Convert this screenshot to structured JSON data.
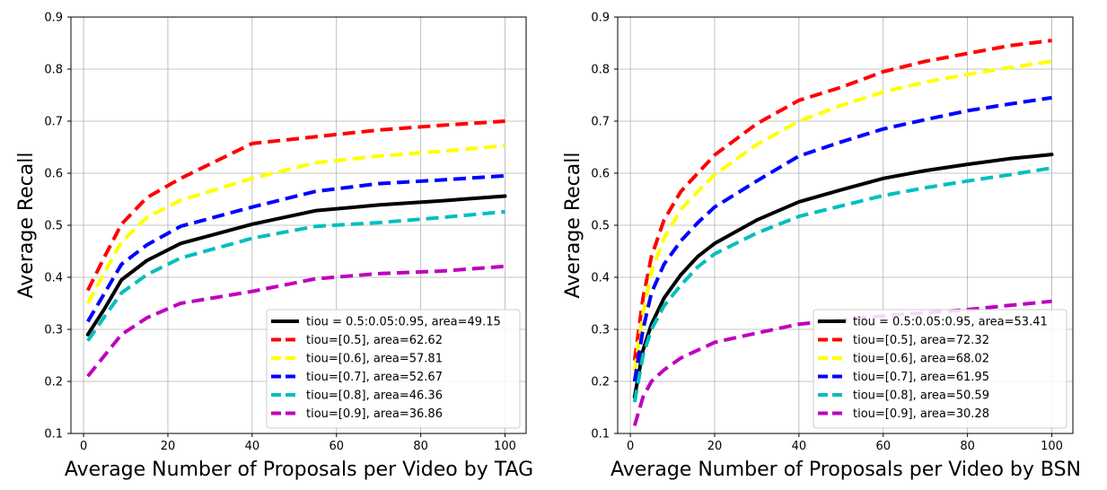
{
  "chart_data": [
    {
      "type": "line",
      "title": "",
      "xlabel": "Average Number of Proposals per Video by TAG",
      "ylabel": "Average Recall",
      "xlim": [
        -3,
        105
      ],
      "ylim": [
        0.1,
        0.9
      ],
      "xticks": [
        0,
        20,
        40,
        60,
        80,
        100
      ],
      "yticks": [
        0.1,
        0.2,
        0.3,
        0.4,
        0.5,
        0.6,
        0.7,
        0.8,
        0.9
      ],
      "grid": true,
      "legend_position": "bottom-right",
      "series": [
        {
          "name": "tiou = 0.5:0.05:0.95, area=49.15",
          "color": "#000000",
          "style": "solid",
          "x": [
            1,
            5,
            9,
            15,
            23,
            40,
            55,
            70,
            85,
            100
          ],
          "y": [
            0.29,
            0.34,
            0.395,
            0.432,
            0.465,
            0.502,
            0.528,
            0.539,
            0.547,
            0.556
          ]
        },
        {
          "name": "tiou=[0.5], area=62.62",
          "color": "#ff0000",
          "style": "dashed",
          "x": [
            1,
            5,
            9,
            15,
            23,
            40,
            55,
            70,
            85,
            100
          ],
          "y": [
            0.375,
            0.44,
            0.502,
            0.553,
            0.59,
            0.657,
            0.67,
            0.683,
            0.692,
            0.7
          ]
        },
        {
          "name": "tiou=[0.6], area=57.81",
          "color": "#ffff00",
          "style": "dashed",
          "x": [
            1,
            5,
            9,
            15,
            23,
            40,
            55,
            70,
            85,
            100
          ],
          "y": [
            0.35,
            0.41,
            0.468,
            0.515,
            0.548,
            0.59,
            0.62,
            0.633,
            0.642,
            0.653
          ]
        },
        {
          "name": "tiou=[0.7], area=52.67",
          "color": "#0000ff",
          "style": "dashed",
          "x": [
            1,
            5,
            9,
            15,
            23,
            40,
            55,
            70,
            85,
            100
          ],
          "y": [
            0.315,
            0.37,
            0.425,
            0.462,
            0.498,
            0.535,
            0.565,
            0.58,
            0.587,
            0.595
          ]
        },
        {
          "name": "tiou=[0.8], area=46.36",
          "color": "#00bfbf",
          "style": "dashed",
          "x": [
            1,
            5,
            9,
            15,
            23,
            40,
            55,
            70,
            85,
            100
          ],
          "y": [
            0.278,
            0.325,
            0.37,
            0.405,
            0.437,
            0.475,
            0.498,
            0.505,
            0.515,
            0.526
          ]
        },
        {
          "name": "tiou=[0.9], area=36.86",
          "color": "#bf00bf",
          "style": "dashed",
          "x": [
            1,
            5,
            9,
            15,
            23,
            40,
            55,
            70,
            85,
            100
          ],
          "y": [
            0.21,
            0.25,
            0.29,
            0.322,
            0.35,
            0.373,
            0.397,
            0.407,
            0.412,
            0.421
          ]
        }
      ]
    },
    {
      "type": "line",
      "title": "",
      "xlabel": "Average Number of Proposals per Video by BSN",
      "ylabel": "Average Recall",
      "xlim": [
        -3,
        105
      ],
      "ylim": [
        0.1,
        0.9
      ],
      "xticks": [
        0,
        20,
        40,
        60,
        80,
        100
      ],
      "yticks": [
        0.1,
        0.2,
        0.3,
        0.4,
        0.5,
        0.6,
        0.7,
        0.8,
        0.9
      ],
      "grid": true,
      "legend_position": "bottom-right",
      "series": [
        {
          "name": "tiou = 0.5:0.05:0.95, area=53.41",
          "color": "#000000",
          "style": "solid",
          "x": [
            1,
            3,
            5,
            8,
            12,
            16,
            20,
            30,
            40,
            50,
            60,
            70,
            80,
            90,
            100
          ],
          "y": [
            0.17,
            0.26,
            0.31,
            0.36,
            0.405,
            0.44,
            0.465,
            0.51,
            0.545,
            0.568,
            0.59,
            0.605,
            0.617,
            0.628,
            0.636
          ]
        },
        {
          "name": "tiou=[0.5], area=72.32",
          "color": "#ff0000",
          "style": "dashed",
          "x": [
            1,
            3,
            5,
            8,
            12,
            16,
            20,
            30,
            40,
            50,
            60,
            70,
            80,
            90,
            100
          ],
          "y": [
            0.24,
            0.36,
            0.44,
            0.51,
            0.565,
            0.6,
            0.635,
            0.695,
            0.74,
            0.765,
            0.795,
            0.815,
            0.83,
            0.845,
            0.855
          ]
        },
        {
          "name": "tiou=[0.6], area=68.02",
          "color": "#ffff00",
          "style": "dashed",
          "x": [
            1,
            3,
            5,
            8,
            12,
            16,
            20,
            30,
            40,
            50,
            60,
            70,
            80,
            90,
            100
          ],
          "y": [
            0.22,
            0.33,
            0.41,
            0.475,
            0.53,
            0.565,
            0.597,
            0.655,
            0.7,
            0.73,
            0.756,
            0.775,
            0.79,
            0.803,
            0.815
          ]
        },
        {
          "name": "tiou=[0.7], area=61.95",
          "color": "#0000ff",
          "style": "dashed",
          "x": [
            1,
            3,
            5,
            8,
            12,
            16,
            20,
            30,
            40,
            50,
            60,
            70,
            80,
            90,
            100
          ],
          "y": [
            0.2,
            0.3,
            0.37,
            0.425,
            0.47,
            0.505,
            0.535,
            0.585,
            0.633,
            0.66,
            0.685,
            0.703,
            0.72,
            0.733,
            0.745
          ]
        },
        {
          "name": "tiou=[0.8], area=50.59",
          "color": "#00bfbf",
          "style": "dashed",
          "x": [
            1,
            3,
            5,
            8,
            12,
            16,
            20,
            30,
            40,
            50,
            60,
            70,
            80,
            90,
            100
          ],
          "y": [
            0.16,
            0.25,
            0.3,
            0.345,
            0.385,
            0.42,
            0.445,
            0.485,
            0.517,
            0.537,
            0.557,
            0.572,
            0.585,
            0.597,
            0.61
          ]
        },
        {
          "name": "tiou=[0.9], area=30.28",
          "color": "#bf00bf",
          "style": "dashed",
          "x": [
            1,
            3,
            5,
            8,
            12,
            16,
            20,
            30,
            40,
            50,
            60,
            70,
            80,
            90,
            100
          ],
          "y": [
            0.115,
            0.17,
            0.2,
            0.222,
            0.245,
            0.26,
            0.275,
            0.293,
            0.31,
            0.318,
            0.326,
            0.332,
            0.338,
            0.346,
            0.354
          ]
        }
      ]
    }
  ]
}
